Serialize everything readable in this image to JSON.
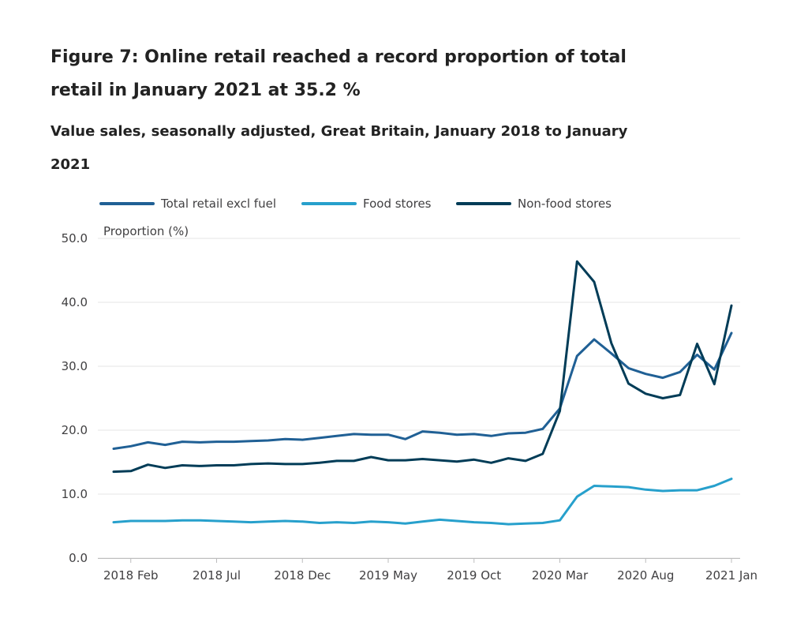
{
  "chart_data": {
    "type": "line",
    "title": "Figure 7: Online retail reached a record proportion of total retail in January 2021 at 35.2 %",
    "subtitle": "Value sales, seasonally adjusted, Great Britain, January 2018 to January 2021",
    "ylabel": "Proportion (%)",
    "xlabel": "",
    "ylim": [
      0,
      50
    ],
    "yticks": [
      "0.0",
      "10.0",
      "20.0",
      "30.0",
      "40.0",
      "50.0"
    ],
    "xtick_labels": [
      "2018 Feb",
      "2018 Jul",
      "2018 Dec",
      "2019 May",
      "2019 Oct",
      "2020 Mar",
      "2020 Aug",
      "2021 Jan"
    ],
    "xtick_index": [
      1,
      6,
      11,
      16,
      21,
      26,
      31,
      36
    ],
    "n_points": 37,
    "grid": true,
    "legend_position": "top",
    "series": [
      {
        "name": "Total retail excl fuel",
        "color": "#206095",
        "values": [
          17.1,
          17.5,
          18.1,
          17.7,
          18.2,
          18.1,
          18.2,
          18.2,
          18.3,
          18.4,
          18.6,
          18.5,
          18.8,
          19.1,
          19.4,
          19.3,
          19.3,
          18.6,
          19.8,
          19.6,
          19.3,
          19.4,
          19.1,
          19.5,
          19.6,
          20.2,
          23.4,
          31.6,
          34.2,
          32.0,
          29.7,
          28.8,
          28.2,
          29.1,
          31.8,
          29.5,
          35.2
        ]
      },
      {
        "name": "Food stores",
        "color": "#27a0cc",
        "values": [
          5.6,
          5.8,
          5.8,
          5.8,
          5.9,
          5.9,
          5.8,
          5.7,
          5.6,
          5.7,
          5.8,
          5.7,
          5.5,
          5.6,
          5.5,
          5.7,
          5.6,
          5.4,
          5.7,
          6.0,
          5.8,
          5.6,
          5.5,
          5.3,
          5.4,
          5.5,
          5.9,
          9.6,
          11.3,
          11.2,
          11.1,
          10.7,
          10.5,
          10.6,
          10.6,
          11.3,
          12.4
        ]
      },
      {
        "name": "Non-food stores",
        "color": "#003c57",
        "values": [
          13.5,
          13.6,
          14.6,
          14.1,
          14.5,
          14.4,
          14.5,
          14.5,
          14.7,
          14.8,
          14.7,
          14.7,
          14.9,
          15.2,
          15.2,
          15.8,
          15.3,
          15.3,
          15.5,
          15.3,
          15.1,
          15.4,
          14.9,
          15.6,
          15.2,
          16.3,
          23.0,
          46.4,
          43.2,
          33.6,
          27.3,
          25.7,
          25.0,
          25.5,
          33.5,
          27.2,
          39.5
        ]
      }
    ]
  }
}
